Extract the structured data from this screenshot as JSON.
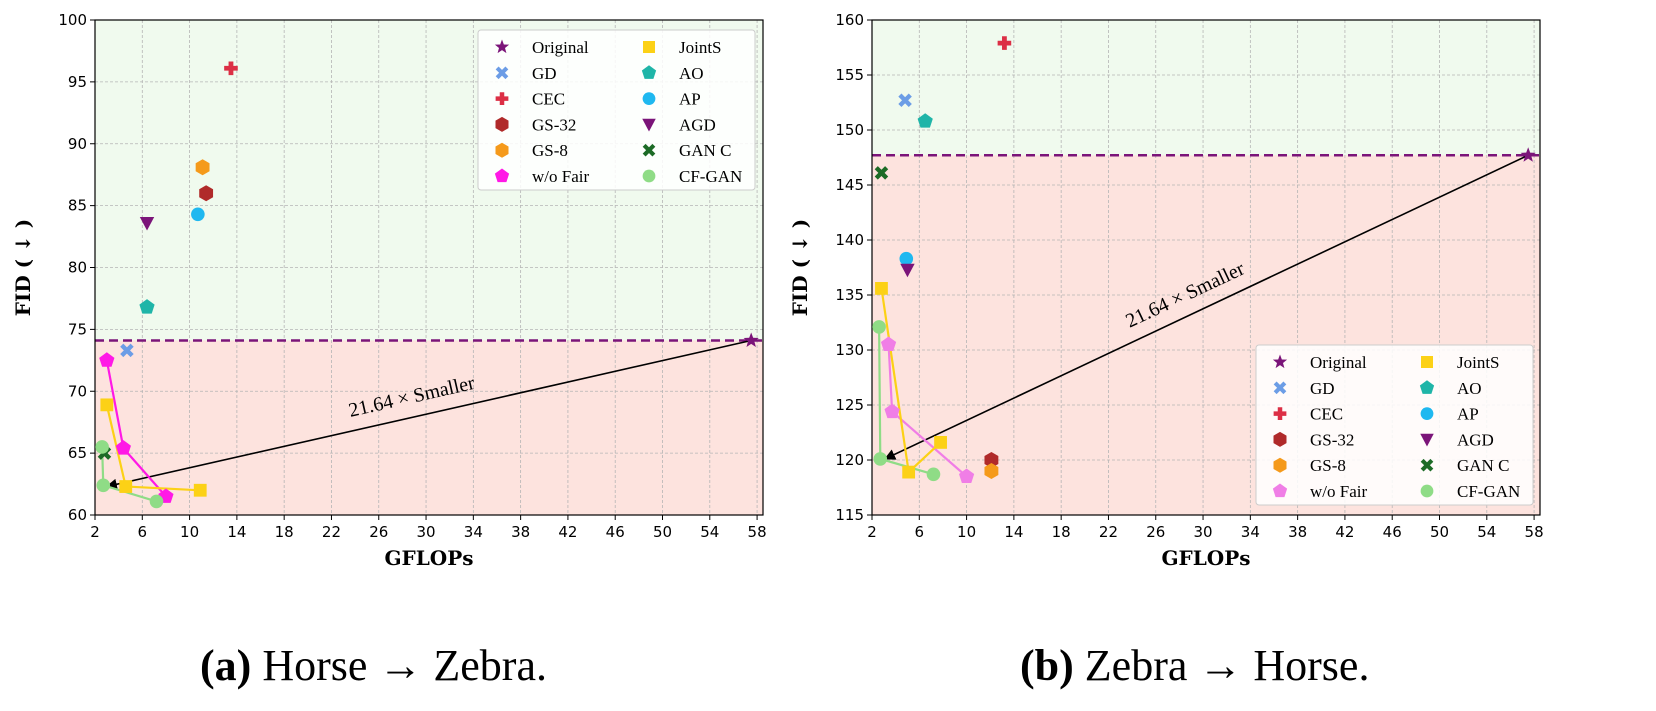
{
  "chart_data": [
    {
      "type": "scatter",
      "xlabel": "GFLOPs",
      "ylabel": "FID ( ↓ )",
      "xlim": [
        2,
        58.5
      ],
      "ylim": [
        60,
        100
      ],
      "xticks": [
        2,
        6,
        10,
        14,
        18,
        22,
        26,
        30,
        34,
        38,
        42,
        46,
        50,
        54,
        58
      ],
      "yticks": [
        60,
        65,
        70,
        75,
        80,
        85,
        90,
        95,
        100
      ],
      "grid": true,
      "legend_position": "top-right",
      "baseline_fid": 74.1,
      "annotation": {
        "text": "21.64 × Smaller",
        "from": [
          57.5,
          74.1
        ],
        "to": [
          3.0,
          62.3
        ]
      },
      "caption": {
        "label": "(a)",
        "text": "Horse → Zebra."
      },
      "legend_order": [
        "Original",
        "GD",
        "CEC",
        "GS-32",
        "GS-8",
        "w/o Fair",
        "JointS",
        "AO",
        "AP",
        "AGD",
        "GAN C",
        "CF-GAN"
      ],
      "series": [
        {
          "name": "Original",
          "marker": "star",
          "color": "#7b1479",
          "points": [
            [
              57.5,
              74.1
            ]
          ]
        },
        {
          "name": "GD",
          "marker": "x",
          "color": "#6c9de6",
          "points": [
            [
              4.7,
              73.3
            ]
          ]
        },
        {
          "name": "CEC",
          "marker": "plus",
          "color": "#dc2f45",
          "points": [
            [
              13.5,
              96.1
            ]
          ]
        },
        {
          "name": "GS-32",
          "marker": "hexagon",
          "color": "#b02a2a",
          "points": [
            [
              11.4,
              86.0
            ]
          ]
        },
        {
          "name": "GS-8",
          "marker": "hexagon",
          "color": "#f59a1b",
          "points": [
            [
              11.1,
              88.1
            ]
          ]
        },
        {
          "name": "w/o Fair",
          "marker": "pentagon",
          "color": "#ff19e6",
          "connected": true,
          "points": [
            [
              3.0,
              72.5
            ],
            [
              4.4,
              65.4
            ],
            [
              8.0,
              61.5
            ]
          ]
        },
        {
          "name": "JointS",
          "marker": "square",
          "color": "#fcd116",
          "connected": true,
          "points": [
            [
              3.0,
              68.9
            ],
            [
              4.6,
              62.3
            ],
            [
              10.9,
              62.0
            ]
          ]
        },
        {
          "name": "AO",
          "marker": "pentagon",
          "color": "#1fb5a8",
          "points": [
            [
              6.4,
              76.8
            ]
          ]
        },
        {
          "name": "AP",
          "marker": "circle",
          "color": "#1fb8f0",
          "points": [
            [
              10.7,
              84.3
            ]
          ]
        },
        {
          "name": "AGD",
          "marker": "triangle-down",
          "color": "#7b1479",
          "points": [
            [
              6.4,
              83.6
            ]
          ]
        },
        {
          "name": "GAN C",
          "marker": "x",
          "color": "#1c6b26",
          "points": [
            [
              2.8,
              65.0
            ]
          ]
        },
        {
          "name": "CF-GAN",
          "marker": "circle",
          "color": "#8fdc86",
          "connected": true,
          "points": [
            [
              2.6,
              65.5
            ],
            [
              2.7,
              62.4
            ],
            [
              7.2,
              61.1
            ]
          ]
        }
      ]
    },
    {
      "type": "scatter",
      "xlabel": "GFLOPs",
      "ylabel": "FID ( ↓ )",
      "xlim": [
        2,
        58.5
      ],
      "ylim": [
        115,
        160
      ],
      "xticks": [
        2,
        6,
        10,
        14,
        18,
        22,
        26,
        30,
        34,
        38,
        42,
        46,
        50,
        54,
        58
      ],
      "yticks": [
        115,
        120,
        125,
        130,
        135,
        140,
        145,
        150,
        155,
        160
      ],
      "grid": true,
      "legend_position": "bottom-right",
      "baseline_fid": 147.7,
      "annotation": {
        "text": "21.64 × Smaller",
        "from": [
          57.5,
          147.7
        ],
        "to": [
          3.1,
          120.1
        ]
      },
      "caption": {
        "label": "(b)",
        "text": "Zebra → Horse."
      },
      "legend_order": [
        "Original",
        "GD",
        "CEC",
        "GS-32",
        "GS-8",
        "w/o Fair",
        "JointS",
        "AO",
        "AP",
        "AGD",
        "GAN C",
        "CF-GAN"
      ],
      "series": [
        {
          "name": "Original",
          "marker": "star",
          "color": "#7b1479",
          "points": [
            [
              57.5,
              147.7
            ]
          ]
        },
        {
          "name": "GD",
          "marker": "x",
          "color": "#6c9de6",
          "points": [
            [
              4.8,
              152.7
            ]
          ]
        },
        {
          "name": "CEC",
          "marker": "plus",
          "color": "#dc2f45",
          "points": [
            [
              13.2,
              157.9
            ]
          ]
        },
        {
          "name": "GS-32",
          "marker": "hexagon",
          "color": "#b02a2a",
          "points": [
            [
              12.1,
              120.0
            ]
          ]
        },
        {
          "name": "GS-8",
          "marker": "hexagon",
          "color": "#f59a1b",
          "points": [
            [
              12.1,
              119.0
            ]
          ]
        },
        {
          "name": "w/o Fair",
          "marker": "pentagon",
          "color": "#f07ee6",
          "connected": true,
          "points": [
            [
              3.4,
              130.5
            ],
            [
              3.7,
              124.4
            ],
            [
              10.0,
              118.5
            ]
          ]
        },
        {
          "name": "JointS",
          "marker": "square",
          "color": "#fcd116",
          "connected": true,
          "points": [
            [
              2.8,
              135.6
            ],
            [
              5.1,
              118.9
            ],
            [
              7.8,
              121.6
            ]
          ]
        },
        {
          "name": "AO",
          "marker": "pentagon",
          "color": "#1fb5a8",
          "points": [
            [
              6.5,
              150.8
            ]
          ]
        },
        {
          "name": "AP",
          "marker": "circle",
          "color": "#1fb8f0",
          "points": [
            [
              4.9,
              138.3
            ]
          ]
        },
        {
          "name": "AGD",
          "marker": "triangle-down",
          "color": "#7b1479",
          "points": [
            [
              5.0,
              137.3
            ]
          ]
        },
        {
          "name": "GAN C",
          "marker": "x",
          "color": "#1c6b26",
          "points": [
            [
              2.8,
              146.1
            ]
          ]
        },
        {
          "name": "CF-GAN",
          "marker": "circle",
          "color": "#8fdc86",
          "connected": true,
          "points": [
            [
              2.6,
              132.1
            ],
            [
              2.7,
              120.1
            ],
            [
              7.2,
              118.7
            ]
          ]
        }
      ]
    }
  ],
  "styles": {
    "baseline_color": "#7b1479",
    "good_region_color": "#f0faee",
    "bad_region_color": "#fde3de",
    "grid_color": "#b5b5b5",
    "arrow_color": "#000000"
  }
}
